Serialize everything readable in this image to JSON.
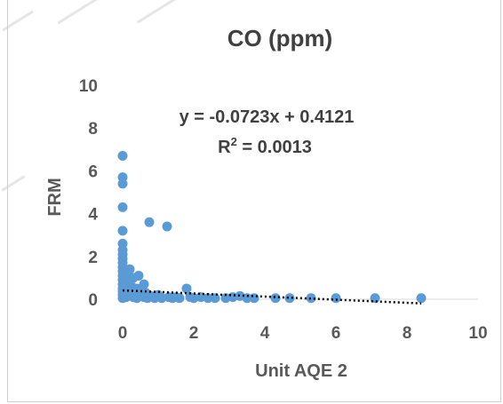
{
  "chart_data": {
    "type": "scatter",
    "title": "CO (ppm)",
    "xlabel": "Unit AQE 2",
    "ylabel": "FRM",
    "xlim": [
      0,
      10
    ],
    "ylim": [
      0,
      10
    ],
    "x_ticks": [
      "0",
      "2",
      "4",
      "6",
      "8",
      "10"
    ],
    "y_ticks": [
      "0",
      "2",
      "4",
      "6",
      "8",
      "10"
    ],
    "grid": "none",
    "legend": "none",
    "colors": {
      "points": "#5b9bd5",
      "trendline": "#000000"
    },
    "trendline": {
      "slope": -0.0723,
      "intercept": 0.4121,
      "x_range": [
        0,
        8.4
      ],
      "equation": "y = -0.0723x + 0.4121",
      "r2_prefix": "R",
      "r2_exp": "2",
      "r2_suffix": " = 0.0013"
    },
    "points": [
      [
        0,
        6.7
      ],
      [
        0,
        5.7
      ],
      [
        0,
        5.4
      ],
      [
        0,
        4.3
      ],
      [
        0,
        3.2
      ],
      [
        0,
        2.6
      ],
      [
        0,
        2.3
      ],
      [
        0,
        2.1
      ],
      [
        0,
        1.9
      ],
      [
        0,
        1.7
      ],
      [
        0,
        1.5
      ],
      [
        0,
        1.3
      ],
      [
        0,
        1.1
      ],
      [
        0,
        0.9
      ],
      [
        0,
        0.7
      ],
      [
        0,
        0.5
      ],
      [
        0,
        0.35
      ],
      [
        0,
        0.2
      ],
      [
        0,
        0.05
      ],
      [
        0.05,
        1.0
      ],
      [
        0.05,
        0.6
      ],
      [
        0.05,
        0.3
      ],
      [
        0.1,
        1.2
      ],
      [
        0.1,
        0.8
      ],
      [
        0.1,
        0.1
      ],
      [
        0.15,
        0.4
      ],
      [
        0.2,
        1.4
      ],
      [
        0.2,
        0.9
      ],
      [
        0.2,
        0.2
      ],
      [
        0.25,
        0.6
      ],
      [
        0.3,
        1.0
      ],
      [
        0.3,
        0.1
      ],
      [
        0.35,
        0.3
      ],
      [
        0.4,
        0.5
      ],
      [
        0.4,
        0.05
      ],
      [
        0.45,
        1.1
      ],
      [
        0.5,
        0.2
      ],
      [
        0.55,
        0.4
      ],
      [
        0.6,
        0.7
      ],
      [
        0.6,
        0.1
      ],
      [
        0.65,
        0.3
      ],
      [
        0.7,
        0.05
      ],
      [
        0.75,
        3.6
      ],
      [
        0.8,
        0.15
      ],
      [
        0.9,
        0.05
      ],
      [
        1.0,
        0.2
      ],
      [
        1.1,
        0.05
      ],
      [
        1.25,
        3.4
      ],
      [
        1.3,
        0.1
      ],
      [
        1.4,
        0.05
      ],
      [
        1.5,
        0.1
      ],
      [
        1.6,
        0.05
      ],
      [
        1.8,
        0.5
      ],
      [
        1.9,
        0.1
      ],
      [
        2.0,
        0.05
      ],
      [
        2.2,
        0.1
      ],
      [
        2.4,
        0.05
      ],
      [
        2.6,
        0.05
      ],
      [
        2.9,
        0.05
      ],
      [
        3.1,
        0.1
      ],
      [
        3.3,
        0.15
      ],
      [
        3.5,
        0.05
      ],
      [
        3.7,
        0.05
      ],
      [
        4.3,
        0.05
      ],
      [
        4.7,
        0.05
      ],
      [
        5.3,
        0.05
      ],
      [
        6.0,
        0.05
      ],
      [
        7.1,
        0.05
      ],
      [
        8.4,
        0.05
      ]
    ]
  }
}
